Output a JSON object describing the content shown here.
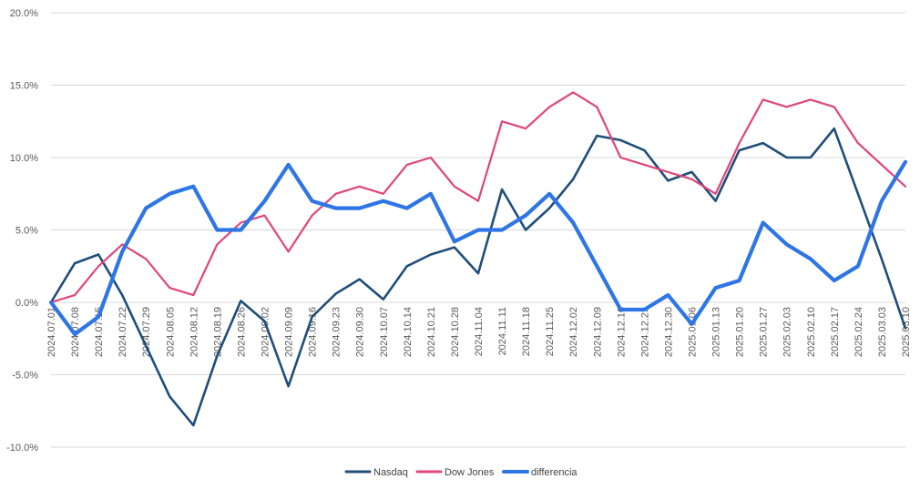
{
  "chart_data": {
    "type": "line",
    "title": "",
    "xlabel": "",
    "ylabel": "",
    "ylim": [
      -10,
      20
    ],
    "y_ticks": [
      "20.0%",
      "15.0%",
      "10.0%",
      "5.0%",
      "0.0%",
      "-5.0%",
      "-10.0%"
    ],
    "y_tick_values": [
      20,
      15,
      10,
      5,
      0,
      -5,
      -10
    ],
    "grid": "horizontal",
    "legend_position": "bottom",
    "x_tick_labels": [
      "2024.07.01",
      "2024.07.08",
      "2024.07.15",
      "2024.07.22",
      "2024.07.29",
      "2024.08.05",
      "2024.08.12",
      "2024.08.19",
      "2024.08.26",
      "2024.09.02",
      "2024.09.09",
      "2024.09.16",
      "2024.09.23",
      "2024.09.30",
      "2024.10.07",
      "2024.10.14",
      "2024.10.21",
      "2024.10.28",
      "2024.11.04",
      "2024.11.11",
      "2024.11.18",
      "2024.11.25",
      "2024.12.02",
      "2024.12.09",
      "2024.12.16",
      "2024.12.23",
      "2024.12.30",
      "2025.01.06",
      "2025.01.13",
      "2025.01.20",
      "2025.01.27",
      "2025.02.03",
      "2025.02.10",
      "2025.02.17",
      "2025.02.24",
      "2025.03.03",
      "2025.03.10"
    ],
    "series": [
      {
        "name": "Nasdaq",
        "color": "#1f4e79",
        "values": [
          0.0,
          2.7,
          3.3,
          0.5,
          -3.0,
          -6.5,
          -8.5,
          -3.7,
          0.1,
          -1.3,
          -5.8,
          -1.0,
          0.6,
          1.6,
          0.2,
          2.5,
          3.3,
          3.8,
          2.0,
          7.8,
          5.0,
          6.5,
          8.5,
          11.5,
          11.2,
          10.5,
          8.4,
          9.0,
          7.0,
          10.5,
          11.0,
          10.0,
          10.0,
          12.0,
          7.5,
          3.0,
          -1.8
        ]
      },
      {
        "name": "Dow Jones",
        "color": "#e0457b",
        "values": [
          0.0,
          0.5,
          2.5,
          4.0,
          3.0,
          1.0,
          0.5,
          4.0,
          5.5,
          6.0,
          3.5,
          6.0,
          7.5,
          8.0,
          7.5,
          9.5,
          10.0,
          8.0,
          7.0,
          12.5,
          12.0,
          13.5,
          14.5,
          13.5,
          10.0,
          9.5,
          9.0,
          8.5,
          7.5,
          11.0,
          14.0,
          13.5,
          14.0,
          13.5,
          11.0,
          9.5,
          8.0
        ]
      },
      {
        "name": "differencia",
        "color": "#2e75e6",
        "values": [
          0.0,
          -2.2,
          -1.0,
          3.5,
          6.5,
          7.5,
          8.0,
          5.0,
          5.0,
          7.0,
          9.5,
          7.0,
          6.5,
          6.5,
          7.0,
          6.5,
          7.5,
          4.2,
          5.0,
          5.0,
          6.0,
          7.5,
          5.5,
          2.5,
          -0.5,
          -0.5,
          0.5,
          -1.5,
          1.0,
          1.5,
          5.5,
          4.0,
          3.0,
          1.5,
          2.5,
          7.0,
          9.7
        ]
      }
    ]
  }
}
